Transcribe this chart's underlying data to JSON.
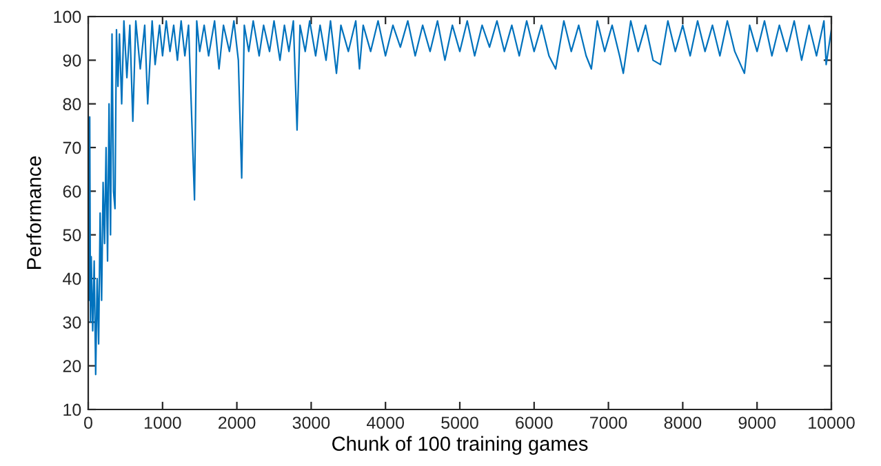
{
  "chart_data": {
    "type": "line",
    "xlabel": "Chunk of 100 training games",
    "ylabel": "Performance",
    "xlim": [
      0,
      10000
    ],
    "ylim": [
      10,
      100
    ],
    "xticks": [
      0,
      1000,
      2000,
      3000,
      4000,
      5000,
      6000,
      7000,
      8000,
      9000,
      10000
    ],
    "yticks": [
      10,
      20,
      30,
      40,
      50,
      60,
      70,
      80,
      90,
      100
    ],
    "grid": false,
    "series": [
      {
        "color": "#0072bd",
        "x": [
          0,
          10,
          20,
          30,
          40,
          60,
          80,
          100,
          120,
          140,
          160,
          180,
          200,
          220,
          240,
          260,
          280,
          300,
          320,
          340,
          360,
          380,
          400,
          420,
          450,
          480,
          520,
          560,
          600,
          640,
          700,
          760,
          800,
          860,
          900,
          960,
          1000,
          1050,
          1100,
          1150,
          1200,
          1250,
          1300,
          1350,
          1430,
          1460,
          1500,
          1560,
          1620,
          1700,
          1760,
          1820,
          1900,
          1960,
          2020,
          2065,
          2100,
          2160,
          2220,
          2300,
          2360,
          2440,
          2500,
          2580,
          2640,
          2700,
          2760,
          2810,
          2850,
          2920,
          2980,
          3060,
          3120,
          3200,
          3260,
          3340,
          3400,
          3500,
          3600,
          3650,
          3700,
          3800,
          3900,
          4000,
          4100,
          4200,
          4300,
          4400,
          4500,
          4600,
          4700,
          4800,
          4900,
          5000,
          5100,
          5200,
          5300,
          5400,
          5500,
          5600,
          5700,
          5800,
          5900,
          6000,
          6100,
          6200,
          6290,
          6400,
          6500,
          6600,
          6700,
          6770,
          6850,
          6950,
          7050,
          7150,
          7200,
          7300,
          7400,
          7500,
          7600,
          7700,
          7800,
          7900,
          8000,
          8100,
          8200,
          8300,
          8400,
          8500,
          8600,
          8700,
          8830,
          8900,
          9000,
          9100,
          9200,
          9300,
          9400,
          9500,
          9600,
          9700,
          9800,
          9900,
          9930,
          10000
        ],
        "values": [
          40,
          35,
          77,
          30,
          45,
          28,
          44,
          18,
          40,
          25,
          55,
          35,
          62,
          48,
          70,
          44,
          80,
          50,
          96,
          60,
          56,
          97,
          84,
          96,
          80,
          99,
          86,
          98,
          76,
          99,
          88,
          98,
          80,
          99,
          89,
          98,
          91,
          99,
          92,
          98,
          90,
          99,
          91,
          98,
          58,
          99,
          92,
          98,
          91,
          99,
          88,
          98,
          92,
          99,
          90,
          63,
          98,
          92,
          99,
          91,
          98,
          92,
          99,
          90,
          98,
          92,
          99,
          74,
          98,
          92,
          99,
          91,
          98,
          90,
          99,
          87,
          98,
          92,
          99,
          88,
          98,
          92,
          99,
          91,
          98,
          93,
          99,
          91,
          98,
          92,
          99,
          90,
          98,
          92,
          99,
          91,
          98,
          93,
          99,
          92,
          98,
          91,
          99,
          92,
          98,
          91,
          88,
          99,
          92,
          98,
          91,
          88,
          99,
          92,
          98,
          91,
          87,
          99,
          92,
          98,
          90,
          89,
          99,
          92,
          98,
          91,
          99,
          92,
          98,
          91,
          99,
          92,
          87,
          98,
          92,
          99,
          91,
          98,
          92,
          99,
          90,
          98,
          91,
          99,
          89,
          97
        ]
      }
    ]
  }
}
